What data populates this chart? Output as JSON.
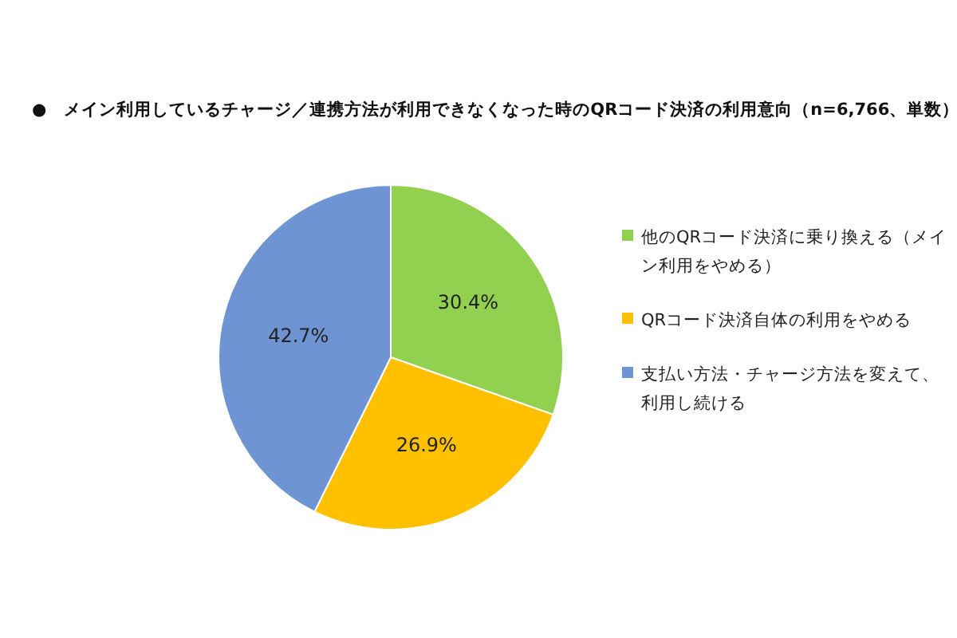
{
  "chart_data": {
    "type": "pie",
    "title": "●　メイン利用しているチャージ／連携方法が利用できなくなった時のQRコード決済の利用意向（n=6,766、単数）",
    "categories": [
      "他のQRコード決済に乗り換える（メイン利用をやめる）",
      "QRコード決済自体の利用をやめる",
      "支払い方法・チャージ方法を変えて、利用し続ける"
    ],
    "values": [
      30.4,
      26.9,
      42.7
    ],
    "colors": [
      "#92d050",
      "#ffc000",
      "#6f94d3"
    ],
    "value_labels": [
      "30.4%",
      "26.9%",
      "42.7%"
    ],
    "legend": "right"
  }
}
